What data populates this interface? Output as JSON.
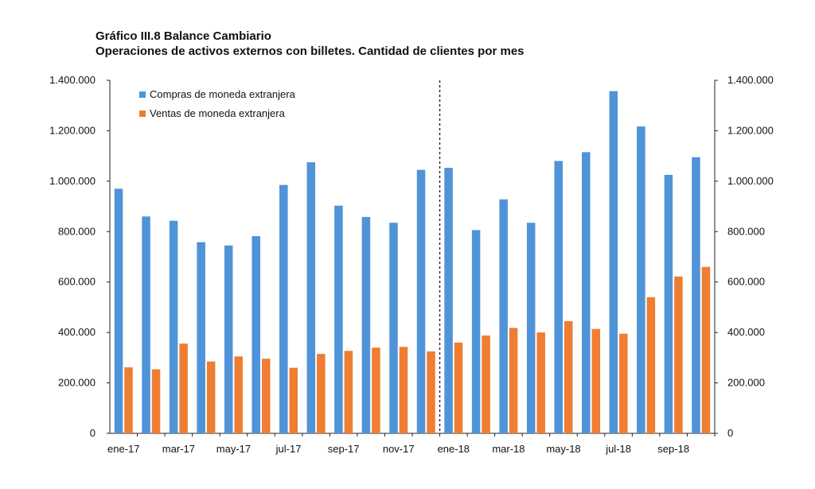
{
  "header": {
    "title": "Gráfico III.8 Balance Cambiario",
    "subtitle": "Operaciones de activos externos con billetes. Cantidad de clientes por mes"
  },
  "chart_data": {
    "type": "bar",
    "categories": [
      "ene-17",
      "feb-17",
      "mar-17",
      "abr-17",
      "may-17",
      "jun-17",
      "jul-17",
      "ago-17",
      "sep-17",
      "oct-17",
      "nov-17",
      "dic-17",
      "ene-18",
      "feb-18",
      "mar-18",
      "abr-18",
      "may-18",
      "jun-18",
      "jul-18",
      "ago-18",
      "sep-18",
      "oct-18"
    ],
    "x_tick_labels": [
      "ene-17",
      "mar-17",
      "may-17",
      "jul-17",
      "sep-17",
      "nov-17",
      "ene-18",
      "mar-18",
      "may-18",
      "jul-18",
      "sep-18"
    ],
    "series": [
      {
        "name": "Compras de moneda extranjera",
        "color": "#4f93d8",
        "values": [
          970000,
          860000,
          843000,
          758000,
          745000,
          782000,
          985000,
          1075000,
          903000,
          858000,
          835000,
          1045000,
          1053000,
          806000,
          928000,
          835000,
          1080000,
          1115000,
          1357000,
          1217000,
          1025000,
          1095000
        ]
      },
      {
        "name": "Ventas de moneda extranjera",
        "color": "#ef7d32",
        "values": [
          262000,
          254000,
          356000,
          285000,
          305000,
          296000,
          260000,
          315000,
          327000,
          340000,
          343000,
          325000,
          360000,
          388000,
          418000,
          400000,
          445000,
          414000,
          395000,
          540000,
          622000,
          660000
        ]
      }
    ],
    "ylim": [
      0,
      1400000
    ],
    "yticks": [
      "0",
      "200.000",
      "400.000",
      "600.000",
      "800.000",
      "1.000.000",
      "1.200.000",
      "1.400.000"
    ],
    "legend_position": "top-left",
    "grid": false,
    "separator_after": "dic-17"
  }
}
